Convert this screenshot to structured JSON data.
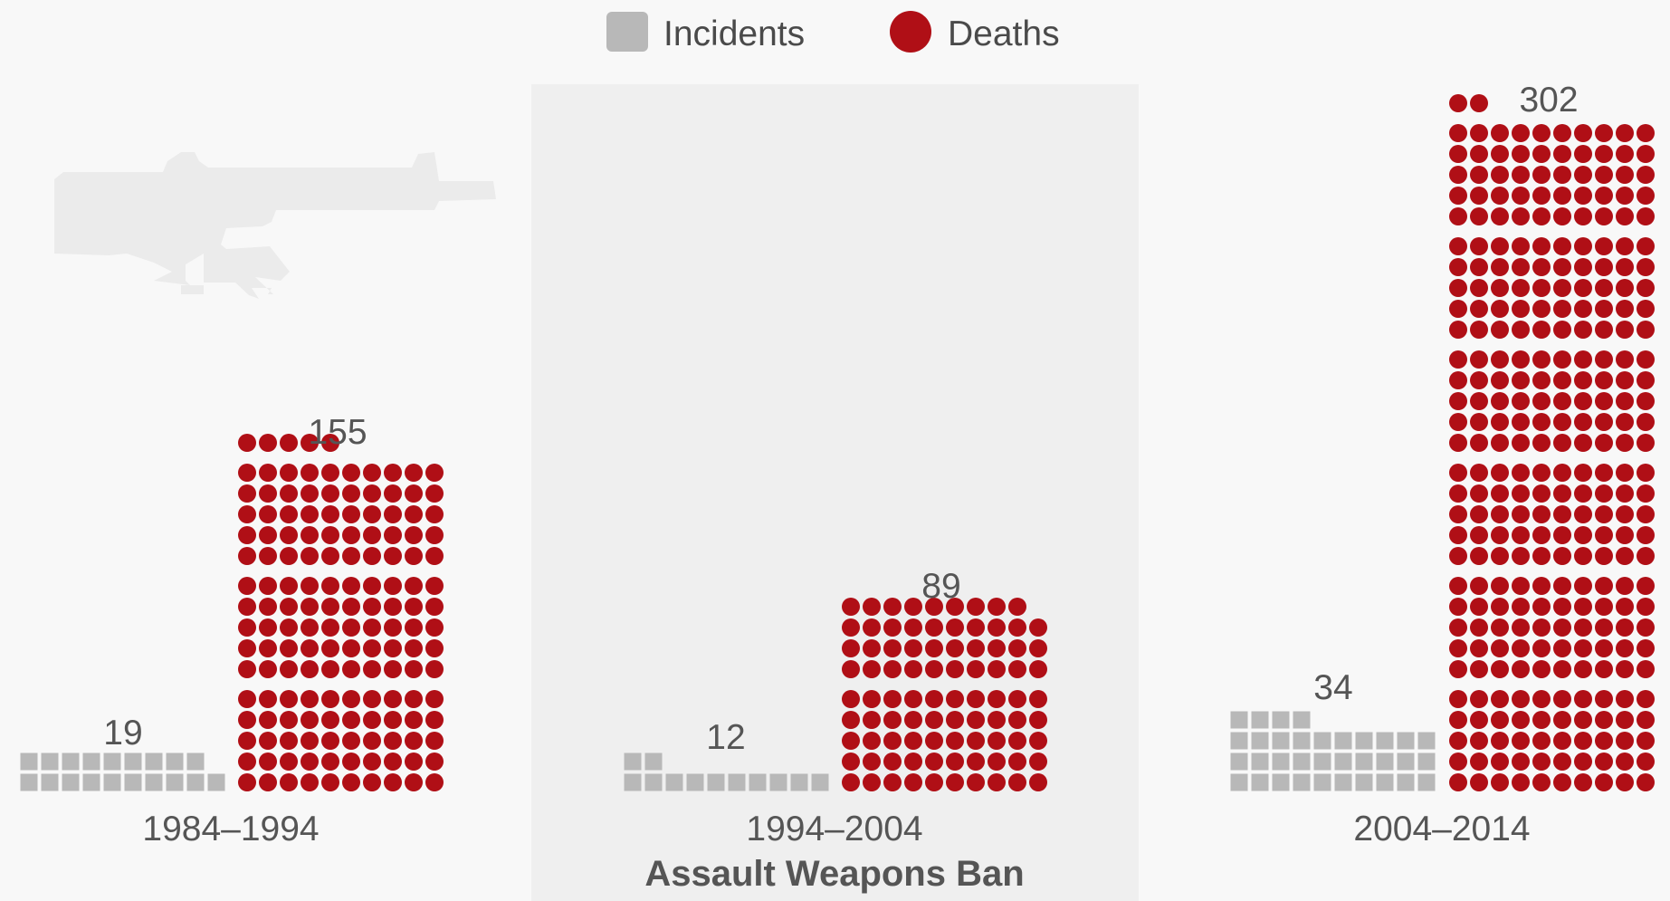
{
  "chart_data": {
    "type": "pictogram-bar",
    "legend": [
      {
        "key": "incidents",
        "label": "Incidents",
        "marker": "square",
        "color": "#b8b8b8"
      },
      {
        "key": "deaths",
        "label": "Deaths",
        "marker": "circle",
        "color": "#b00f16"
      }
    ],
    "units_per_row": 10,
    "periods": [
      {
        "label": "1984–1994",
        "incidents": 19,
        "deaths": 155,
        "highlighted": false
      },
      {
        "label": "1994–2004",
        "incidents": 12,
        "deaths": 89,
        "highlighted": true,
        "annotation": "Assault Weapons Ban"
      },
      {
        "label": "2004–2014",
        "incidents": 34,
        "deaths": 302,
        "highlighted": false
      }
    ]
  },
  "colors": {
    "background": "#f8f8f8",
    "highlight_band": "#efefef",
    "incidents": "#b8b8b8",
    "deaths": "#b00f16",
    "rifle_silhouette": "#ebebeb",
    "text": "#555555"
  },
  "decoration": {
    "icon": "assault-rifle-icon"
  }
}
